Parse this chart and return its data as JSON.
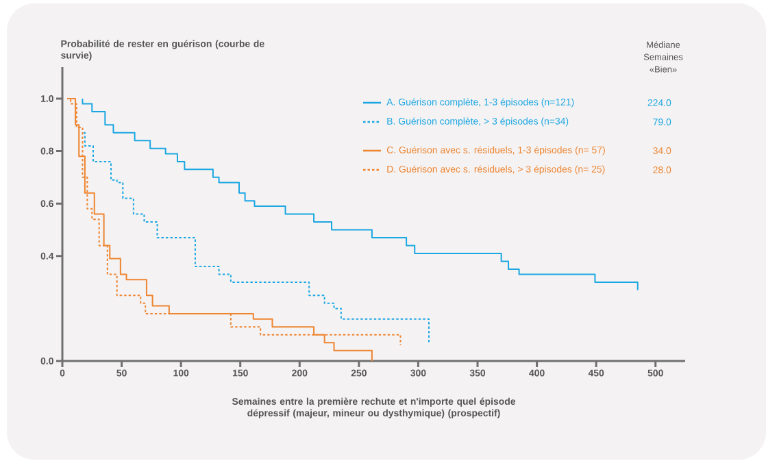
{
  "chart_data": {
    "type": "step",
    "ylabel": "Probabilité de rester en guérison (courbe de survie)",
    "xlabel": "Semaines entre la première rechute et n'importe quel épisode dépressif (majeur, mineur ou dysthymique) (prospectif)",
    "annotations": [
      "Médiane Semaines «Bien»",
      "224.0",
      "79.0",
      "34.0",
      "28.0"
    ],
    "xlim": [
      0,
      525
    ],
    "ylim": [
      0,
      1.12
    ],
    "xticks": [
      0,
      50,
      100,
      150,
      200,
      250,
      300,
      350,
      400,
      450,
      500
    ],
    "yticks": [
      {
        "value": 0,
        "label": "0.0"
      },
      {
        "value": 0.4,
        "label": "0.4"
      },
      {
        "value": 0.6,
        "label": "0.6"
      },
      {
        "value": 0.8,
        "label": "0.8"
      },
      {
        "value": 1.0,
        "label": "1.0"
      }
    ],
    "legend": "top right",
    "marker": "none",
    "grid": false,
    "series": [
      {
        "name": "A. Guérison complète, 1-3 épisodes (n=121)",
        "color": "#1ba7e2",
        "line_style": "solid",
        "x": [
          17,
          17,
          25,
          36,
          43,
          61,
          74,
          87,
          97,
          103,
          127,
          132,
          149,
          154,
          162,
          188,
          212,
          227,
          261,
          290,
          297,
          370,
          376,
          385,
          449,
          485,
          485
        ],
        "values": [
          1.0,
          0.98,
          0.95,
          0.9,
          0.87,
          0.84,
          0.81,
          0.79,
          0.76,
          0.73,
          0.7,
          0.68,
          0.64,
          0.61,
          0.59,
          0.56,
          0.53,
          0.5,
          0.47,
          0.44,
          0.41,
          0.38,
          0.35,
          0.33,
          0.3,
          0.3,
          0.27
        ]
      },
      {
        "name": "B. Guérison complète, > 3 épisodes (n=34)",
        "color": "#1ba7e2",
        "line_style": "dashed",
        "x": [
          18,
          19,
          26,
          41,
          46,
          51,
          60,
          69,
          80,
          112,
          132,
          142,
          208,
          221,
          229,
          235,
          309,
          309
        ],
        "values": [
          0.87,
          0.82,
          0.76,
          0.69,
          0.68,
          0.62,
          0.56,
          0.53,
          0.47,
          0.36,
          0.33,
          0.3,
          0.25,
          0.22,
          0.2,
          0.16,
          0.16,
          0.07
        ]
      },
      {
        "name": "C. Guérison avec s. résiduels, 1-3 épisodes (n= 57)",
        "color": "#ee8530",
        "line_style": "solid",
        "x": [
          4,
          11,
          14,
          19,
          27,
          35,
          40,
          49,
          54,
          71,
          76,
          90,
          161,
          177,
          212,
          221,
          229,
          261,
          261
        ],
        "values": [
          1.0,
          0.9,
          0.78,
          0.64,
          0.56,
          0.44,
          0.39,
          0.33,
          0.31,
          0.25,
          0.21,
          0.18,
          0.16,
          0.13,
          0.1,
          0.07,
          0.04,
          0.04,
          0.0
        ]
      },
      {
        "name": "D. Guérison avec s. résiduels, > 3 épisodes (n= 25)",
        "color": "#ee8530",
        "line_style": "dashed",
        "x": [
          4,
          7,
          12,
          17,
          21,
          25,
          31,
          38,
          46,
          66,
          70,
          142,
          167,
          285,
          285
        ],
        "values": [
          1.0,
          0.98,
          0.89,
          0.7,
          0.58,
          0.54,
          0.44,
          0.33,
          0.25,
          0.22,
          0.18,
          0.13,
          0.1,
          0.1,
          0.06
        ]
      }
    ]
  }
}
